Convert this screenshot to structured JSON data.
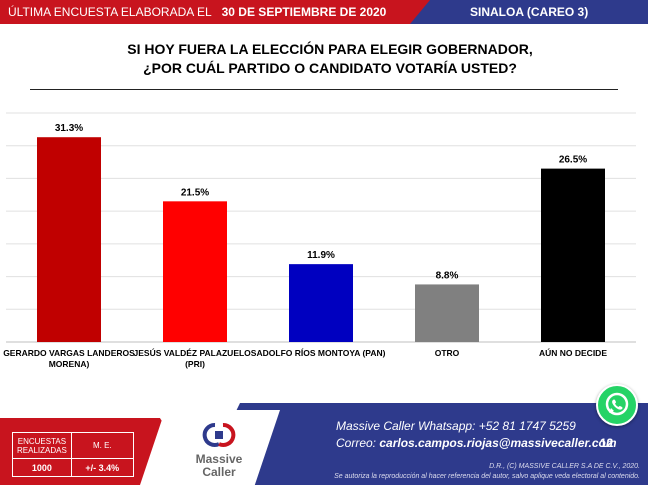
{
  "header": {
    "survey_label": "ÚLTIMA ENCUESTA ELABORADA EL",
    "survey_date": "30 DE SEPTIEMBRE DE 2020",
    "region": "SINALOA (CAREO 3)"
  },
  "title": {
    "line1": "SI HOY FUERA LA ELECCIÓN PARA ELEGIR GOBERNADOR,",
    "line2": "¿POR CUÁL PARTIDO O CANDIDATO VOTARÍA USTED?"
  },
  "chart_data": {
    "type": "bar",
    "title": "SI HOY FUERA LA ELECCIÓN PARA ELEGIR GOBERNADOR, ¿POR CUÁL PARTIDO O CANDIDATO VOTARÍA USTED?",
    "categories": [
      [
        "GERARDO VARGAS LANDEROS",
        "MORENA)"
      ],
      [
        "JESÚS VALDÉZ PALAZUELOS",
        "(PRI)"
      ],
      [
        "ADOLFO RÍOS MONTOYA (PAN)"
      ],
      [
        "OTRO"
      ],
      [
        "AÚN NO DECIDE"
      ]
    ],
    "values": [
      31.3,
      21.5,
      11.9,
      8.8,
      26.5
    ],
    "labels": [
      "31.3%",
      "21.5%",
      "11.9%",
      "8.8%",
      "26.5%"
    ],
    "colors": [
      "#c00000",
      "#ff0000",
      "#0000c0",
      "#808080",
      "#000000"
    ],
    "ylim": [
      0,
      35
    ],
    "grid": true,
    "xlabel": "",
    "ylabel": ""
  },
  "stats": {
    "col1_header": "ENCUESTAS REALIZADAS",
    "col2_header": "M. E.",
    "col1_value": "1000",
    "col2_value": "+/- 3.4%"
  },
  "logo": {
    "line1": "Massive",
    "line2": "Caller"
  },
  "contact": {
    "whatsapp_label": "Massive Caller Whatsapp:",
    "whatsapp_number": "+52 81 1747 5259",
    "email_label": "Correo:",
    "email": "carlos.campos.riojas@massivecaller.com"
  },
  "page_number": "12",
  "legal": {
    "line1": "D.R., (C) MASSIVE CALLER S.A DE C.V., 2020.",
    "line2": "Se autoriza la reproducción al hacer referencia del autor, salvo aplique veda electoral al contenido."
  },
  "colors": {
    "red": "#c8141e",
    "navy": "#2e3a8c",
    "whatsapp": "#25d366"
  }
}
